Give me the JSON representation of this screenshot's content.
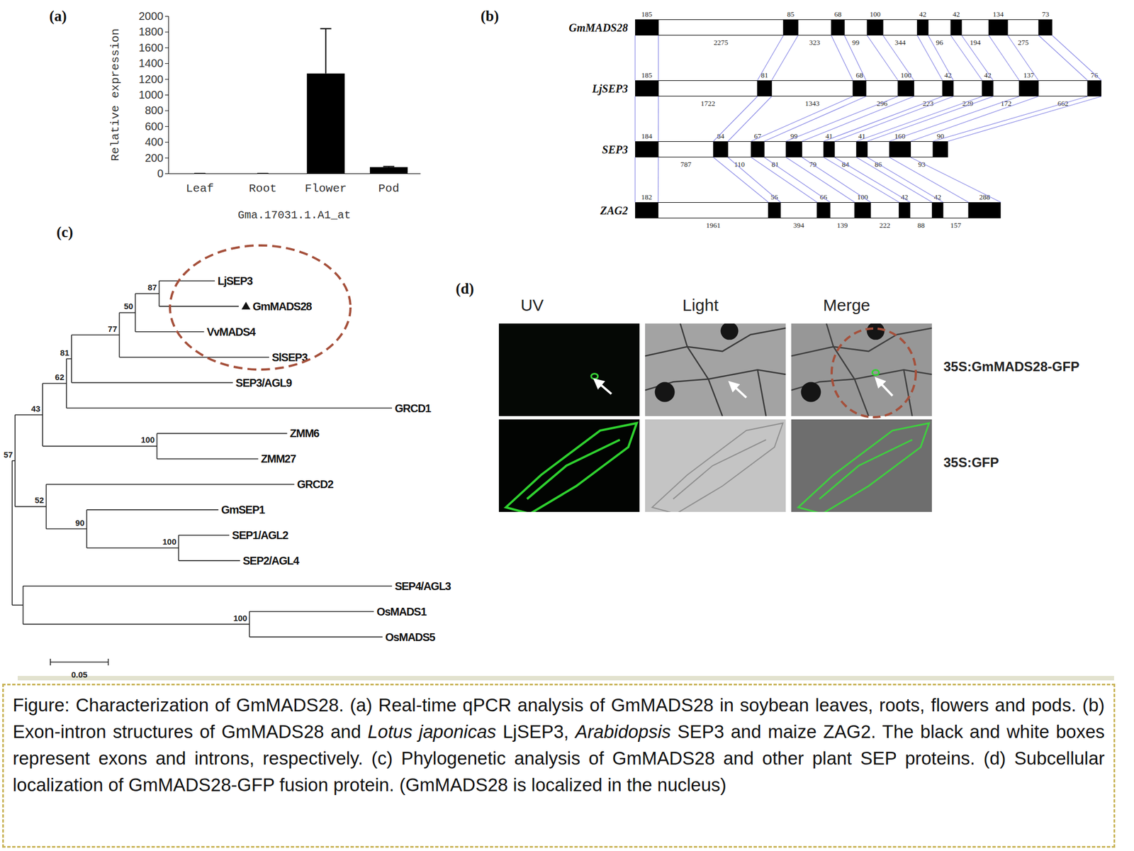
{
  "chart_data": {
    "type": "bar",
    "categories": [
      "Leaf",
      "Root",
      "Flower",
      "Pod"
    ],
    "values": [
      0,
      0,
      1270,
      80
    ],
    "errors": [
      0,
      0,
      570,
      8
    ],
    "color": "#000000",
    "ylim": [
      0,
      2000
    ],
    "yticks": [
      0,
      200,
      400,
      600,
      800,
      1000,
      1200,
      1400,
      1600,
      1800,
      2000
    ],
    "y_label": "Relative expression",
    "x_label": "Gma.17031.1.A1_at"
  },
  "panel_labels": [
    "(a)",
    "(b)",
    "(c)",
    "(d)"
  ],
  "gene_structure": {
    "genes": [
      {
        "name": "GmMADS28",
        "exons": [
          185,
          85,
          68,
          100,
          42,
          42,
          134,
          73
        ],
        "introns": [
          2275,
          323,
          99,
          344,
          96,
          194,
          275
        ]
      },
      {
        "name": "LjSEP3",
        "exons": [
          185,
          81,
          68,
          100,
          42,
          42,
          137,
          76
        ],
        "introns": [
          1722,
          1343,
          296,
          223,
          229,
          172,
          662
        ]
      },
      {
        "name": "SEP3",
        "exons": [
          184,
          84,
          67,
          99,
          41,
          41,
          160,
          90
        ],
        "introns": [
          787,
          110,
          81,
          79,
          84,
          86,
          93
        ]
      },
      {
        "name": "ZAG2",
        "exons": [
          182,
          56,
          66,
          100,
          42,
          42,
          288
        ],
        "introns": [
          1961,
          394,
          139,
          222,
          88,
          157
        ]
      }
    ]
  },
  "tree": {
    "scale_bar": 0.05,
    "root": {
      "children": [
        {
          "bootstrap": 57,
          "branch_length": 0.0025,
          "children": [
            {
              "bootstrap": 43,
              "branch_length": 0.0238,
              "children": [
                {
                  "bootstrap": 62,
                  "branch_length": 0.0206,
                  "children": [
                    {
                      "bootstrap": 81,
                      "branch_length": 0.0044,
                      "children": [
                        {
                          "bootstrap": 77,
                          "branch_length": 0.0413,
                          "children": [
                            {
                              "bootstrap": 50,
                              "branch_length": 0.0138,
                              "children": [
                                {
                                  "bootstrap": 87,
                                  "branch_length": 0.0206,
                                  "children": [
                                    {
                                      "label": "LjSEP3",
                                      "branch_length": 0.0481
                                    },
                                    {
                                      "label": "GmMADS28",
                                      "marker": "triangle",
                                      "branch_length": 0.0688
                                    }
                                  ]
                                },
                                {
                                  "label": "VvMADS4",
                                  "branch_length": 0.0594
                                }
                              ]
                            },
                            {
                              "label": "SlSEP3",
                              "branch_length": 0.1294
                            }
                          ]
                        },
                        {
                          "label": "SEP3/AGL9",
                          "branch_length": 0.1394
                        }
                      ]
                    },
                    {
                      "label": "GRCD1",
                      "branch_length": 0.2813
                    }
                  ]
                },
                {
                  "bootstrap": 100,
                  "branch_length": 0.0988,
                  "children": [
                    {
                      "label": "ZMM6",
                      "branch_length": 0.1125
                    },
                    {
                      "label": "ZMM27",
                      "branch_length": 0.0875
                    }
                  ]
                }
              ]
            },
            {
              "bootstrap": 52,
              "branch_length": 0.0269,
              "children": [
                {
                  "label": "GRCD2",
                  "branch_length": 0.2144
                },
                {
                  "bootstrap": 90,
                  "branch_length": 0.035,
                  "children": [
                    {
                      "label": "GmSEP1",
                      "branch_length": 0.1138
                    },
                    {
                      "bootstrap": 100,
                      "branch_length": 0.0794,
                      "children": [
                        {
                          "label": "SEP1/AGL2",
                          "branch_length": 0.0438
                        },
                        {
                          "label": "SEP2/AGL4",
                          "branch_length": 0.0531
                        }
                      ]
                    }
                  ]
                }
              ]
            }
          ]
        },
        {
          "branch_length": 0.0094,
          "children": [
            {
              "label": "SEP4/AGL3",
              "branch_length": 0.3188
            },
            {
              "bootstrap": 100,
              "branch_length": 0.1956,
              "children": [
                {
                  "label": "OsMADS1",
                  "branch_length": 0.1075
                },
                {
                  "label": "OsMADS5",
                  "branch_length": 0.115
                }
              ]
            }
          ]
        }
      ]
    }
  },
  "localization": {
    "columns": [
      "UV",
      "Light",
      "Merge"
    ],
    "rows": [
      "35S:GmMADS28-GFP",
      "35S:GFP"
    ]
  },
  "caption": [
    {
      "text": "Figure: Characterization of GmMADS28. (a) Real-time qPCR analysis of GmMADS28 in soybean leaves, roots, flowers and pods. (b) Exon-intron structures of GmMADS28 and "
    },
    {
      "text": "Lotus japonicas",
      "italic": true
    },
    {
      "text": " LjSEP3, "
    },
    {
      "text": "Arabidopsis",
      "italic": true
    },
    {
      "text": " SEP3 and maize ZAG2. The black and white boxes represent exons and introns, respectively. (c) Phylogenetic analysis of GmMADS28 and other plant SEP proteins. (d) Subcellular localization of GmMADS28-GFP fusion protein. (GmMADS28 is localized in the nucleus)"
    }
  ]
}
